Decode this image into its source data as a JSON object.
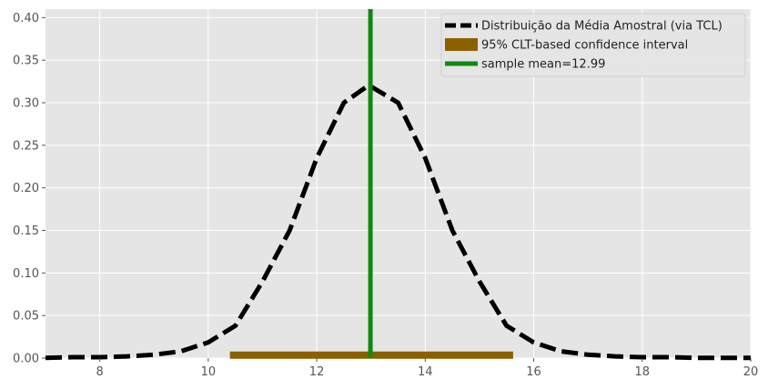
{
  "chart_data": {
    "type": "line",
    "title": "",
    "xlabel": "",
    "ylabel": "",
    "xlim": [
      7,
      20
    ],
    "ylim": [
      0,
      0.41
    ],
    "grid": true,
    "legend_placement": "top-right",
    "xticks": [
      8,
      10,
      12,
      14,
      16,
      18,
      20
    ],
    "yticks": [
      0.0,
      0.05,
      0.1,
      0.15,
      0.2,
      0.25,
      0.3,
      0.35,
      0.4
    ],
    "series": [
      {
        "name": "Distribuição da Média Amostral (via TCL)",
        "kind": "dashed-line",
        "color": "#000000",
        "distribution": "normal",
        "mean": 12.99,
        "std": 1.25,
        "x": [
          7.0,
          7.5,
          8.0,
          8.5,
          9.0,
          9.5,
          10.0,
          10.5,
          11.0,
          11.5,
          12.0,
          12.5,
          12.9,
          13.0,
          13.5,
          14.0,
          14.5,
          15.0,
          15.5,
          16.0,
          16.5,
          17.0,
          17.5,
          18.0,
          18.5,
          19.0,
          19.5,
          20.0
        ],
        "y": [
          0.0003,
          0.0011,
          0.0011,
          0.002,
          0.004,
          0.008,
          0.0185,
          0.038,
          0.09,
          0.15,
          0.235,
          0.3,
          0.318,
          0.319,
          0.3,
          0.235,
          0.15,
          0.09,
          0.038,
          0.0185,
          0.008,
          0.004,
          0.002,
          0.0011,
          0.0011,
          0.0003,
          0.0003,
          0.0003
        ]
      },
      {
        "name": "95% CLT-based confidence interval",
        "kind": "interval-bar",
        "color": "#8b6100",
        "x_start": 10.4,
        "x_end": 15.62,
        "y": 0.004
      },
      {
        "name": "sample mean=12.99",
        "kind": "vertical-line",
        "color": "#118811",
        "x": 12.99
      }
    ]
  }
}
